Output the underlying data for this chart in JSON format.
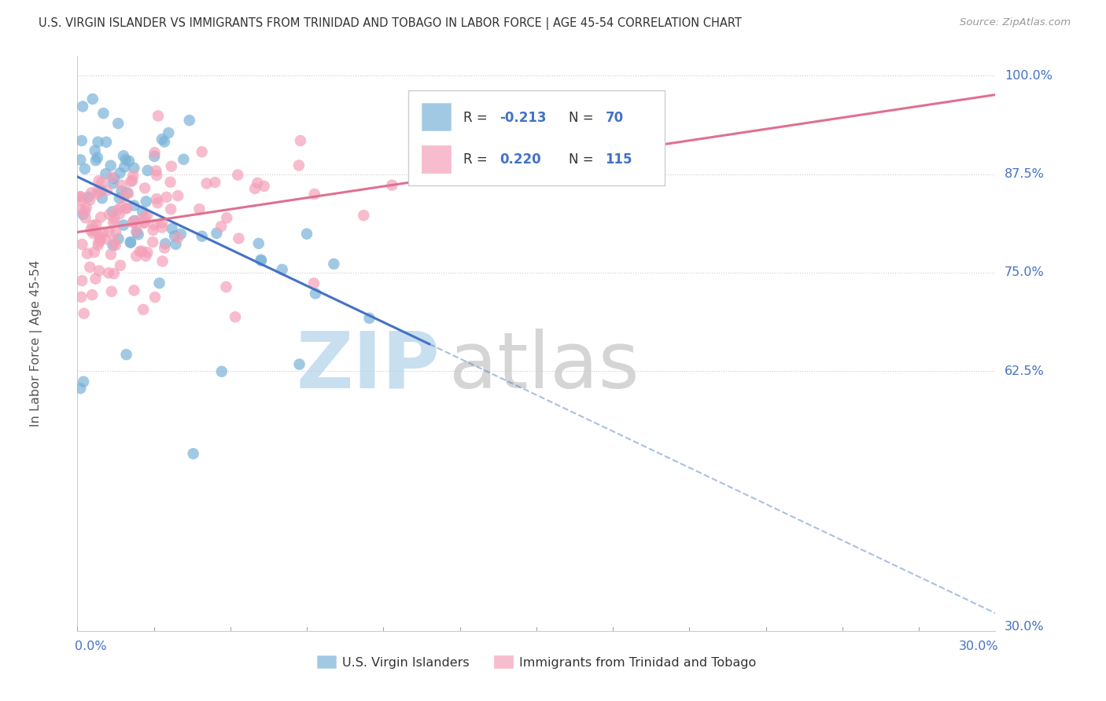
{
  "title": "U.S. VIRGIN ISLANDER VS IMMIGRANTS FROM TRINIDAD AND TOBAGO IN LABOR FORCE | AGE 45-54 CORRELATION CHART",
  "source": "Source: ZipAtlas.com",
  "yaxis_label": "In Labor Force | Age 45-54",
  "legend_label1": "U.S. Virgin Islanders",
  "legend_label2": "Immigrants from Trinidad and Tobago",
  "R1": -0.213,
  "N1": 70,
  "R2": 0.22,
  "N2": 115,
  "blue_dot_color": "#7ab3d9",
  "pink_dot_color": "#f4a0b8",
  "blue_line_color": "#4472c4",
  "pink_line_color": "#e07090",
  "xlim": [
    0.0,
    0.3
  ],
  "ylim": [
    0.295,
    1.025
  ],
  "right_labels": [
    [
      1.0,
      "100.0%"
    ],
    [
      0.875,
      "87.5%"
    ],
    [
      0.75,
      "75.0%"
    ],
    [
      0.625,
      "62.5%"
    ],
    [
      0.3,
      "30.0%"
    ]
  ],
  "label_color": "#4472c4",
  "grid_color": "#cccccc",
  "watermark_zip_color": "#c8dff0",
  "watermark_atlas_color": "#d5d5d5"
}
